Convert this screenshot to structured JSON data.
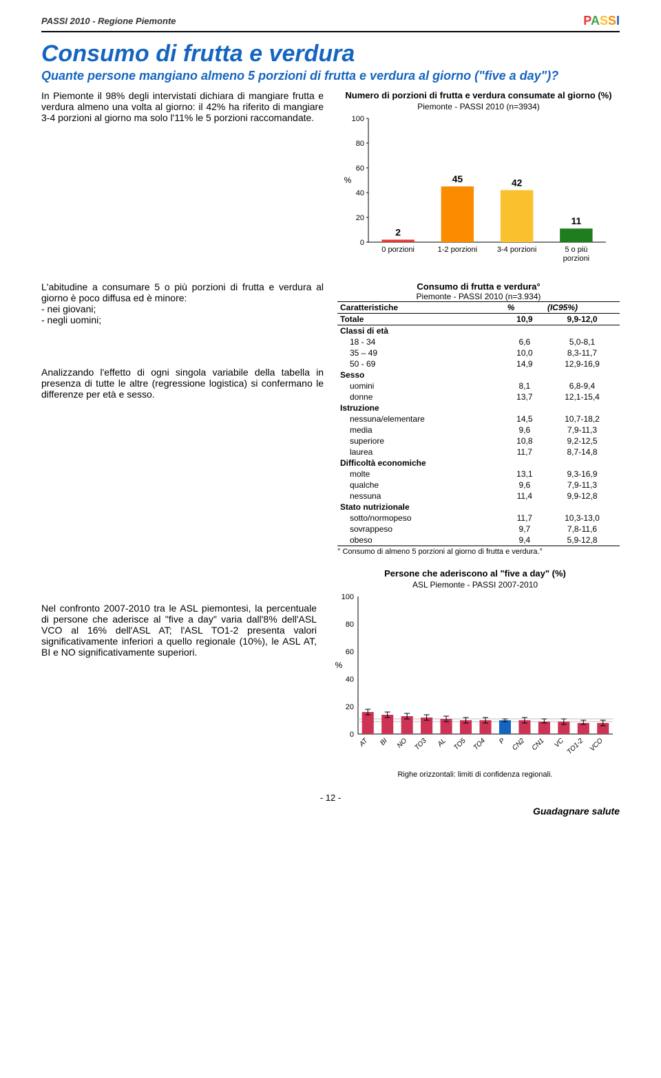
{
  "header": {
    "title": "PASSI 2010 - Regione Piemonte",
    "logo": [
      "P",
      "A",
      "S",
      "S",
      "I"
    ]
  },
  "doc_title": "Consumo di frutta e verdura",
  "subtitle": "Quante persone mangiano almeno 5 porzioni di frutta e verdura al giorno (\"five a day\")?",
  "para1": "In Piemonte il 98% degli intervistati dichiara di mangiare frutta e verdura almeno una volta al giorno: il 42% ha riferito di mangiare 3-4 porzioni al giorno ma solo l'11% le 5 porzioni raccomandate.",
  "chart1": {
    "title": "Numero di porzioni di frutta e verdura consumate al giorno (%)",
    "subtitle": "Piemonte - PASSI 2010 (n=3934)",
    "categories": [
      "0 porzioni",
      "1-2 porzioni",
      "3-4 porzioni",
      "5 o più porzioni"
    ],
    "values": [
      2,
      45,
      42,
      11
    ],
    "colors": [
      "#e53935",
      "#fb8c00",
      "#fbc02d",
      "#1e7d1e"
    ],
    "ymax": 100,
    "ytick": 20,
    "ylabel": "%",
    "value_fontsize": 14
  },
  "para2_a": "L'abitudine a consumare 5 o più porzioni di frutta e verdura al giorno è poco diffusa ed è minore:",
  "para2_b": "- nei giovani;",
  "para2_c": "- negli uomini;",
  "para3": "Analizzando l'effetto di ogni singola variabile della tabella in presenza di tutte le altre (regressione logistica) si confermano le differenze per età e sesso.",
  "table": {
    "title": "Consumo di frutta e verdura°",
    "subtitle": "Piemonte - PASSI 2010 (n=3.934)",
    "head": [
      "Caratteristiche",
      "%",
      "(IC95%)"
    ],
    "total": [
      "Totale",
      "10,9",
      "9,9-12,0"
    ],
    "groups": [
      {
        "label": "Classi di età",
        "rows": [
          [
            "18 - 34",
            "6,6",
            "5,0-8,1"
          ],
          [
            "35 – 49",
            "10,0",
            "8,3-11,7"
          ],
          [
            "50 - 69",
            "14,9",
            "12,9-16,9"
          ]
        ]
      },
      {
        "label": "Sesso",
        "rows": [
          [
            "uomini",
            "8,1",
            "6,8-9,4"
          ],
          [
            "donne",
            "13,7",
            "12,1-15,4"
          ]
        ]
      },
      {
        "label": "Istruzione",
        "rows": [
          [
            "nessuna/elementare",
            "14,5",
            "10,7-18,2"
          ],
          [
            "media",
            "9,6",
            "7,9-11,3"
          ],
          [
            "superiore",
            "10,8",
            "9,2-12,5"
          ],
          [
            "laurea",
            "11,7",
            "8,7-14,8"
          ]
        ]
      },
      {
        "label": "Difficoltà economiche",
        "rows": [
          [
            "molte",
            "13,1",
            "9,3-16,9"
          ],
          [
            "qualche",
            "9,6",
            "7,9-11,3"
          ],
          [
            "nessuna",
            "11,4",
            "9,9-12,8"
          ]
        ]
      },
      {
        "label": "Stato nutrizionale",
        "rows": [
          [
            "sotto/normopeso",
            "11,7",
            "10,3-13,0"
          ],
          [
            "sovrappeso",
            "9,7",
            "7,8-11,6"
          ],
          [
            "obeso",
            "9,4",
            "5,9-12,8"
          ]
        ]
      }
    ],
    "footnote": "° Consumo di almeno 5 porzioni al giorno di frutta e verdura.°"
  },
  "para4": "Nel confronto 2007-2010 tra le ASL piemontesi, la percentuale di persone che aderisce al \"five a day\" varia dall'8% dell'ASL VCO al 16% dell'ASL AT; l'ASL TO1-2 presenta valori significativamente inferiori a quello regionale (10%), le ASL AT, BI e NO significativamente superiori.",
  "chart2": {
    "title": "Persone che aderiscono al \"five a day\" (%)",
    "subtitle": "ASL Piemonte - PASSI 2007-2010",
    "ymax": 100,
    "ytick": 20,
    "ylabel": "%",
    "ref_line": 10,
    "ref_color": "#bfbfbf",
    "categories": [
      "AT",
      "BI",
      "NO",
      "TO3",
      "AL",
      "TO5",
      "TO4",
      "P",
      "CN2",
      "CN1",
      "VC",
      "TO1-2",
      "VCO"
    ],
    "values": [
      16,
      14,
      13,
      12,
      11,
      10,
      10,
      10,
      10,
      9,
      9,
      8,
      8
    ],
    "err": [
      [
        14,
        18
      ],
      [
        12,
        16
      ],
      [
        11,
        15
      ],
      [
        10,
        14
      ],
      [
        9,
        13
      ],
      [
        8,
        12
      ],
      [
        8,
        12
      ],
      [
        9,
        11
      ],
      [
        8,
        12
      ],
      [
        8,
        11
      ],
      [
        7,
        11
      ],
      [
        7,
        10
      ],
      [
        6,
        10
      ]
    ],
    "bar_color": "#cc3355",
    "highlight_index": 7,
    "highlight_color": "#1565c0",
    "caption": "Righe orizzontali: limiti di confidenza regionali."
  },
  "footer": {
    "page": "- 12 -",
    "right": "Guadagnare salute"
  }
}
